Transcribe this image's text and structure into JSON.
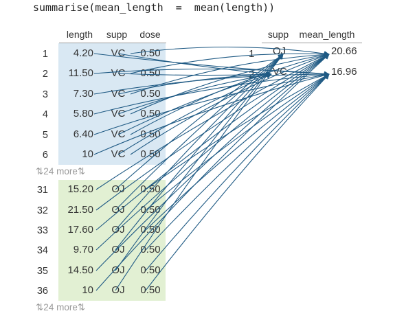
{
  "code": "summarise(mean_length  =  mean(length))",
  "input_table": {
    "columns": [
      "length",
      "supp",
      "dose"
    ],
    "group_vc": [
      {
        "row": "1",
        "length": "4.20",
        "supp": "VC",
        "dose": "0.50"
      },
      {
        "row": "2",
        "length": "11.50",
        "supp": "VC",
        "dose": "0.50"
      },
      {
        "row": "3",
        "length": "7.30",
        "supp": "VC",
        "dose": "0.50"
      },
      {
        "row": "4",
        "length": "5.80",
        "supp": "VC",
        "dose": "0.50"
      },
      {
        "row": "5",
        "length": "6.40",
        "supp": "VC",
        "dose": "0.50"
      },
      {
        "row": "6",
        "length": "10",
        "supp": "VC",
        "dose": "0.50"
      }
    ],
    "more_vc": "⇅24 more⇅",
    "group_oj": [
      {
        "row": "31",
        "length": "15.20",
        "supp": "OJ",
        "dose": "0.50"
      },
      {
        "row": "32",
        "length": "21.50",
        "supp": "OJ",
        "dose": "0.50"
      },
      {
        "row": "33",
        "length": "17.60",
        "supp": "OJ",
        "dose": "0.50"
      },
      {
        "row": "34",
        "length": "9.70",
        "supp": "OJ",
        "dose": "0.50"
      },
      {
        "row": "35",
        "length": "14.50",
        "supp": "OJ",
        "dose": "0.50"
      },
      {
        "row": "36",
        "length": "10",
        "supp": "OJ",
        "dose": "0.50"
      }
    ],
    "more_oj": "⇅24 more⇅",
    "band_colors": {
      "vc": "#d9e8f3",
      "oj": "#e2f0d3"
    }
  },
  "output_table": {
    "columns": [
      "supp",
      "mean_length"
    ],
    "rows": [
      {
        "row": "1",
        "supp": "OJ",
        "mean_length": "20.66"
      },
      {
        "row": "2",
        "supp": "VC",
        "mean_length": "16.96"
      }
    ]
  },
  "arrow_color": "#1f5a84"
}
